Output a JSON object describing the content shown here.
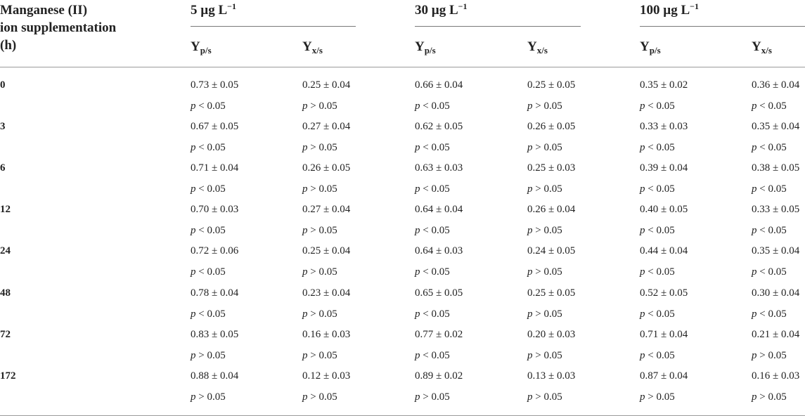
{
  "header": {
    "first_col_lines": [
      "Manganese (II)",
      "ion supplementation",
      "(h)"
    ],
    "groups": [
      {
        "base": "5 µg L",
        "exp": "−1"
      },
      {
        "base": "30 µg L",
        "exp": "−1"
      },
      {
        "base": "100 µg L",
        "exp": "−1"
      }
    ],
    "sub_cols": [
      {
        "base": "Y",
        "sub": "p/s"
      },
      {
        "base": "Y",
        "sub": "x/s"
      }
    ]
  },
  "rows": [
    {
      "time": "0",
      "values": [
        "0.73 ± 0.05",
        "0.25 ± 0.04",
        "0.66 ± 0.04",
        "0.25 ± 0.05",
        "0.35 ± 0.02",
        "0.36 ± 0.04"
      ],
      "p": [
        [
          "<",
          "0.05"
        ],
        [
          ">",
          "0.05"
        ],
        [
          "<",
          "0.05"
        ],
        [
          ">",
          "0.05"
        ],
        [
          "<",
          "0.05"
        ],
        [
          "<",
          "0.05"
        ]
      ]
    },
    {
      "time": "3",
      "values": [
        "0.67 ± 0.05",
        "0.27 ± 0.04",
        "0.62 ± 0.05",
        "0.26 ± 0.05",
        "0.33 ± 0.03",
        "0.35 ± 0.04"
      ],
      "p": [
        [
          "<",
          "0.05"
        ],
        [
          ">",
          "0.05"
        ],
        [
          "<",
          "0.05"
        ],
        [
          ">",
          "0.05"
        ],
        [
          "<",
          "0.05"
        ],
        [
          "<",
          "0.05"
        ]
      ]
    },
    {
      "time": "6",
      "values": [
        "0.71 ± 0.04",
        "0.26 ± 0.05",
        "0.63 ± 0.03",
        "0.25 ± 0.03",
        "0.39 ± 0.04",
        "0.38 ± 0.05"
      ],
      "p": [
        [
          "<",
          "0.05"
        ],
        [
          ">",
          "0.05"
        ],
        [
          "<",
          "0.05"
        ],
        [
          ">",
          "0.05"
        ],
        [
          "<",
          "0.05"
        ],
        [
          "<",
          "0.05"
        ]
      ]
    },
    {
      "time": "12",
      "values": [
        "0.70 ± 0.03",
        "0.27 ± 0.04",
        "0.64 ± 0.04",
        "0.26 ± 0.04",
        "0.40 ± 0.05",
        "0.33 ± 0.05"
      ],
      "p": [
        [
          "<",
          "0.05"
        ],
        [
          ">",
          "0.05"
        ],
        [
          "<",
          "0.05"
        ],
        [
          ">",
          "0.05"
        ],
        [
          "<",
          "0.05"
        ],
        [
          "<",
          "0.05"
        ]
      ]
    },
    {
      "time": "24",
      "values": [
        "0.72 ± 0.06",
        "0.25 ± 0.04",
        "0.64 ± 0.03",
        "0.24 ± 0.05",
        "0.44 ± 0.04",
        "0.35 ± 0.04"
      ],
      "p": [
        [
          "<",
          "0.05"
        ],
        [
          ">",
          "0.05"
        ],
        [
          "<",
          "0.05"
        ],
        [
          ">",
          "0.05"
        ],
        [
          "<",
          "0.05"
        ],
        [
          "<",
          "0.05"
        ]
      ]
    },
    {
      "time": "48",
      "values": [
        "0.78 ± 0.04",
        "0.23 ± 0.04",
        "0.65 ± 0.05",
        "0.25 ± 0.05",
        "0.52 ± 0.05",
        "0.30 ± 0.04"
      ],
      "p": [
        [
          "<",
          "0.05"
        ],
        [
          ">",
          "0.05"
        ],
        [
          "<",
          "0.05"
        ],
        [
          ">",
          "0.05"
        ],
        [
          "<",
          "0.05"
        ],
        [
          "<",
          "0.05"
        ]
      ]
    },
    {
      "time": "72",
      "values": [
        "0.83 ± 0.05",
        "0.16 ± 0.03",
        "0.77 ± 0.02",
        "0.20 ± 0.03",
        "0.71 ± 0.04",
        "0.21 ± 0.04"
      ],
      "p": [
        [
          ">",
          "0.05"
        ],
        [
          ">",
          "0.05"
        ],
        [
          "<",
          "0.05"
        ],
        [
          ">",
          "0.05"
        ],
        [
          "<",
          "0.05"
        ],
        [
          ">",
          "0.05"
        ]
      ]
    },
    {
      "time": "172",
      "values": [
        "0.88 ± 0.04",
        "0.12 ± 0.03",
        "0.89 ± 0.02",
        "0.13 ± 0.03",
        "0.87 ± 0.04",
        "0.16 ± 0.03"
      ],
      "p": [
        [
          ">",
          "0.05"
        ],
        [
          ">",
          "0.05"
        ],
        [
          ">",
          "0.05"
        ],
        [
          ">",
          "0.05"
        ],
        [
          ">",
          "0.05"
        ],
        [
          ">",
          "0.05"
        ]
      ]
    }
  ],
  "p_symbol": "p"
}
